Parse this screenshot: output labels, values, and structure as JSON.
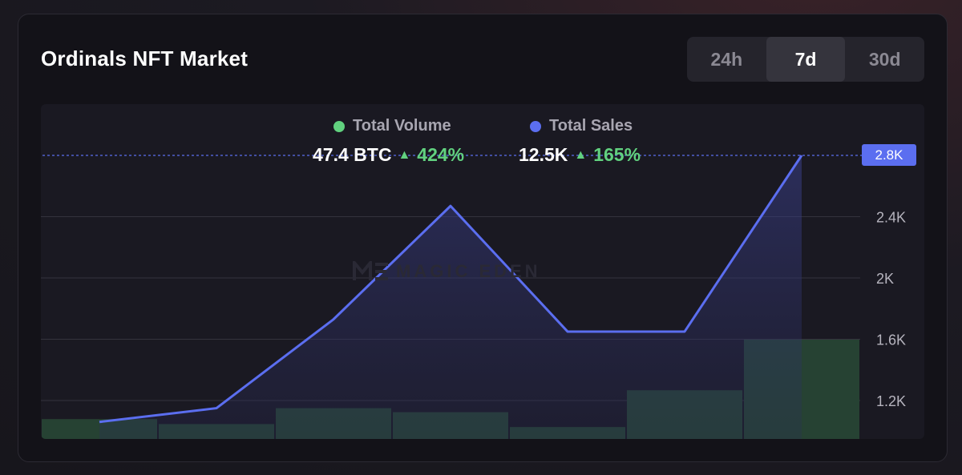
{
  "header": {
    "title": "Ordinals NFT Market",
    "tabs": [
      {
        "label": "24h",
        "active": false
      },
      {
        "label": "7d",
        "active": true
      },
      {
        "label": "30d",
        "active": false
      }
    ]
  },
  "legend": {
    "volume": {
      "label": "Total Volume",
      "value": "47.4 BTC",
      "change": "424%",
      "color": "#61d17f"
    },
    "sales": {
      "label": "Total Sales",
      "value": "12.5K",
      "change": "165%",
      "color": "#5b6ef0"
    }
  },
  "watermark": "MAGIC EDEN",
  "crosshair_label": "2.8K",
  "chart_data": {
    "type": "line",
    "y_ticks": [
      "1.2K",
      "1.6K",
      "2K",
      "2.4K"
    ],
    "ylim": [
      1000,
      2850
    ],
    "grid": true,
    "series": [
      {
        "name": "Total Sales",
        "type": "line",
        "color": "#5b6ef0",
        "values": [
          1060,
          1150,
          1730,
          2470,
          1650,
          1650,
          2800
        ]
      },
      {
        "name": "Total Volume",
        "type": "bar",
        "color": "#264233",
        "relative_values": [
          0.2,
          0.15,
          0.31,
          0.27,
          0.12,
          0.49,
          1.0
        ]
      }
    ]
  }
}
